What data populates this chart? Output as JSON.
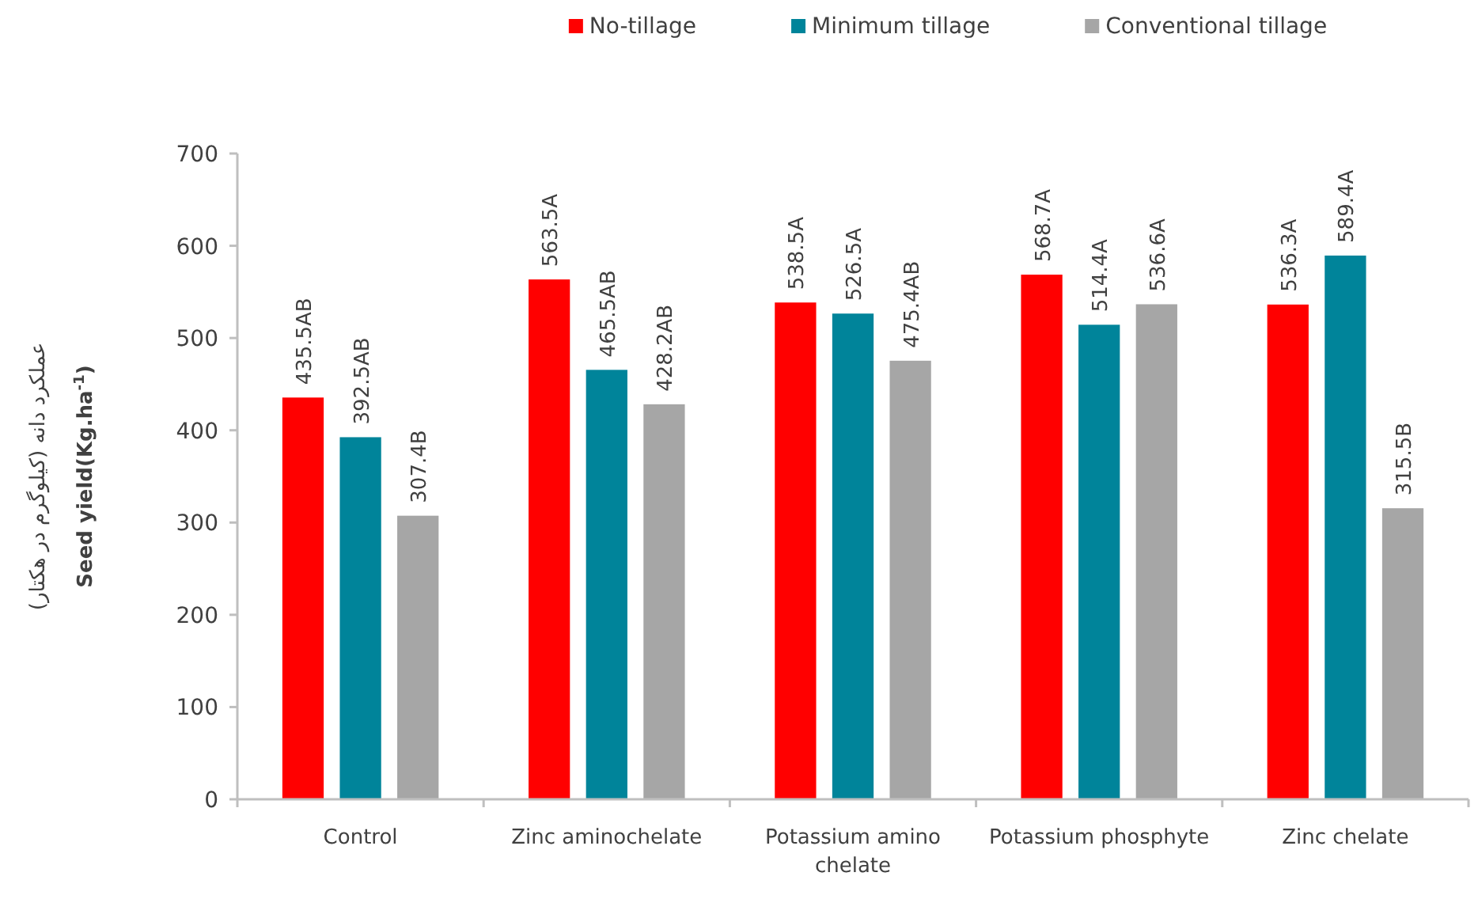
{
  "chart_data": {
    "type": "bar",
    "xlabel": null,
    "ylabel": "عملکرد دانه (کیلوگرم در هکتار)\nSeed yield(Kg.ha$^{-1}$)",
    "categories": [
      "Control",
      "Zinc aminochelate",
      "Potassium amino chelate",
      "Potassium phosphyte",
      "Zinc chelate"
    ],
    "series": [
      {
        "name": "No-tillage",
        "color": "#ff0000",
        "values": [
          435.5,
          563.5,
          538.5,
          568.7,
          536.3
        ],
        "value_labels": [
          "435.5AB",
          "563.5A",
          "538.5A",
          "568.7A",
          "536.3A"
        ]
      },
      {
        "name": "Minimum tillage",
        "color": "#00849a",
        "values": [
          392.5,
          465.5,
          526.5,
          514.4,
          589.4
        ],
        "value_labels": [
          "392.5AB",
          "465.5AB",
          "526.5A",
          "514.4A",
          "589.4A"
        ]
      },
      {
        "name": "Conventional tillage",
        "color": "#a6a6a6",
        "values": [
          307.4,
          428.2,
          475.4,
          536.6,
          315.5
        ],
        "value_labels": [
          "307.4B",
          "428.2AB",
          "475.4AB",
          "536.6A",
          "315.5B"
        ]
      }
    ],
    "ylim": [
      0,
      700
    ],
    "yticks": [
      0,
      100,
      200,
      300,
      400,
      500,
      600,
      700
    ],
    "legend": "top",
    "grid": false
  }
}
